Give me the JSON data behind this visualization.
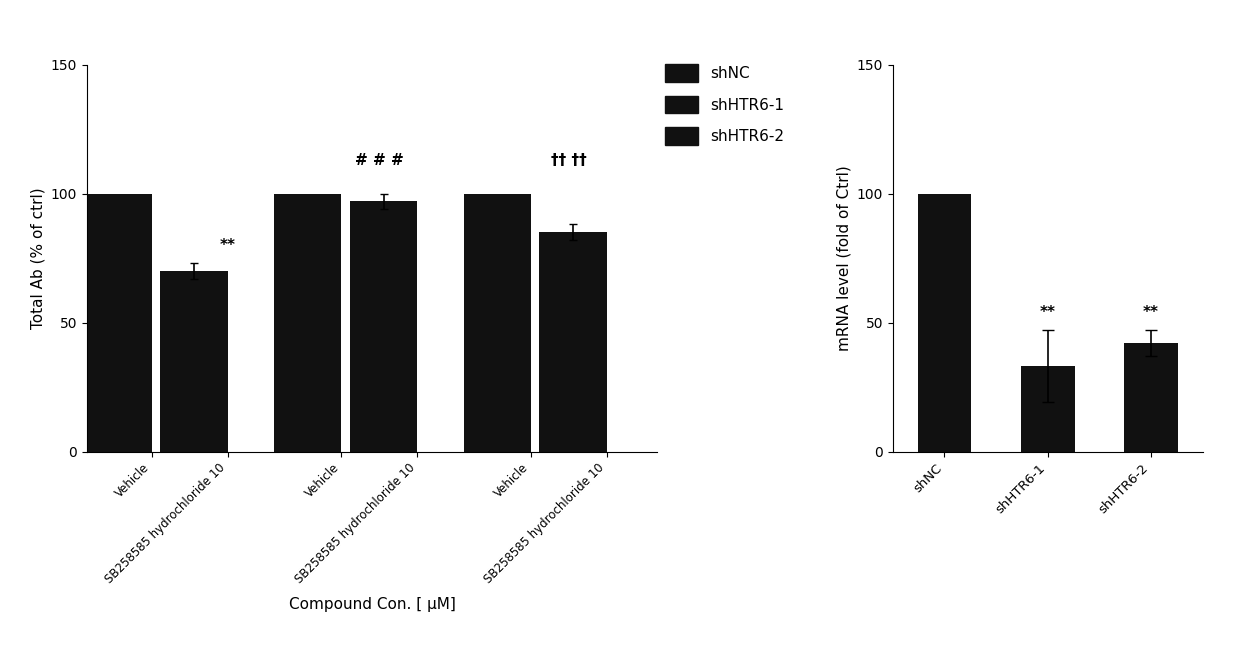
{
  "left_chart": {
    "groups": [
      {
        "label": "shNC",
        "bars": [
          {
            "x_label": "Vehicle",
            "value": 100,
            "error": 0
          },
          {
            "x_label": "SB258585 hydrochloride 10",
            "value": 70,
            "error": 3
          }
        ],
        "sig_second": "**",
        "sig_group": ""
      },
      {
        "label": "shHTR6-1",
        "bars": [
          {
            "x_label": "Vehicle",
            "value": 100,
            "error": 0
          },
          {
            "x_label": "SB258585 hydrochloride 10",
            "value": 97,
            "error": 3
          }
        ],
        "sig_second": "",
        "sig_group": "# # #"
      },
      {
        "label": "shHTR6-2",
        "bars": [
          {
            "x_label": "Vehicle",
            "value": 100,
            "error": 0
          },
          {
            "x_label": "SB258585 hydrochloride 10",
            "value": 85,
            "error": 3
          }
        ],
        "sig_second": "",
        "sig_group": "†† ††"
      }
    ],
    "ylabel": "Total Ab (% of ctrl)",
    "xlabel": "Compound Con. [ μM]",
    "ylim": [
      0,
      150
    ],
    "yticks": [
      0,
      50,
      100,
      150
    ]
  },
  "right_chart": {
    "categories": [
      "shNC",
      "shHTR6-1",
      "shHTR6-2"
    ],
    "values": [
      100,
      33,
      42
    ],
    "errors": [
      0,
      14,
      5
    ],
    "sig": [
      "",
      "**",
      "**"
    ],
    "ylabel": "mRNA level (fold of Ctrl)",
    "ylim": [
      0,
      150
    ],
    "yticks": [
      0,
      50,
      100,
      150
    ]
  },
  "legend": {
    "labels": [
      "shNC",
      "shHTR6-1",
      "shHTR6-2"
    ],
    "colors": [
      "#111111",
      "#111111",
      "#111111"
    ]
  },
  "bar_color": "#111111",
  "font_color": "#000000",
  "background_color": "#ffffff"
}
